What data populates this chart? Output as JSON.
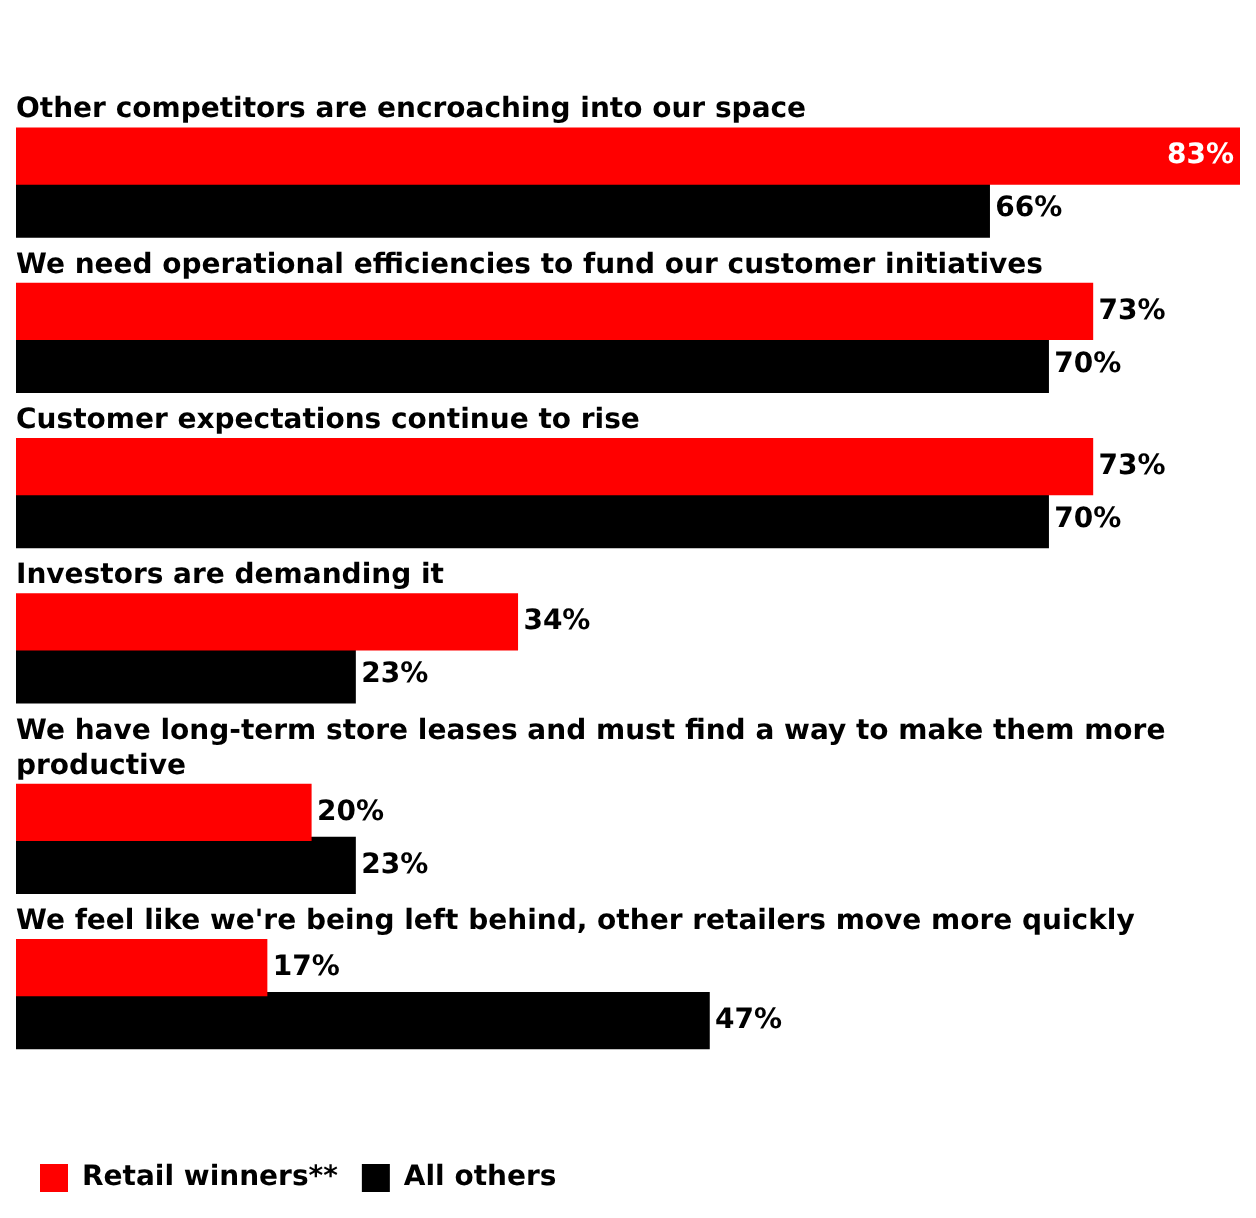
{
  "chart_data": {
    "type": "bar",
    "orientation": "horizontal",
    "categories": [
      "Other competitors are encroaching into our space",
      "We need operational efficiencies to fund our customer initiatives",
      "Customer expectations continue to rise",
      "Investors are demanding it",
      "We have long-term store leases and must find a way to make them more productive",
      "We feel like we're being left behind, other retailers move more quickly"
    ],
    "series": [
      {
        "name": "Retail winners**",
        "color": "#ff0000",
        "values": [
          83,
          73,
          73,
          34,
          20,
          17
        ],
        "value_labels": [
          "83%",
          "73%",
          "73%",
          "34%",
          "20%",
          "17%"
        ]
      },
      {
        "name": "All others",
        "color": "#000000",
        "values": [
          66,
          70,
          70,
          23,
          23,
          47
        ],
        "value_labels": [
          "66%",
          "70%",
          "70%",
          "23%",
          "23%",
          "47%"
        ]
      }
    ],
    "legend": "bottom left"
  }
}
